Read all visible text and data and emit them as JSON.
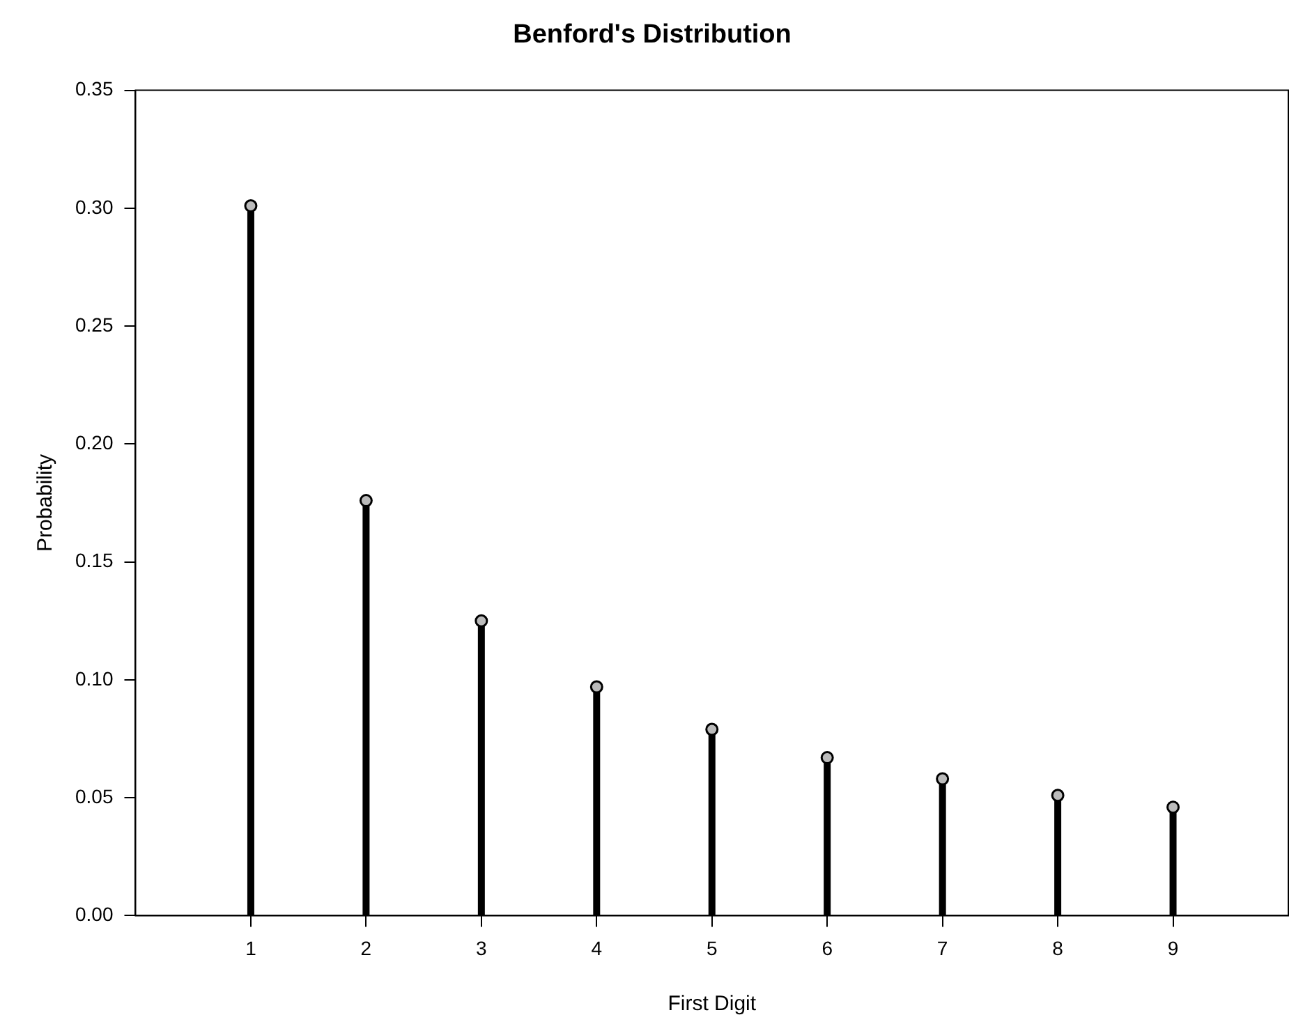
{
  "chart_data": {
    "type": "lollipop",
    "title": "Benford's Distribution",
    "xlabel": "First Digit",
    "ylabel": "Probability",
    "x": [
      1,
      2,
      3,
      4,
      5,
      6,
      7,
      8,
      9
    ],
    "values": [
      0.301,
      0.176,
      0.125,
      0.097,
      0.079,
      0.067,
      0.058,
      0.051,
      0.046
    ],
    "color": "#000000",
    "xlim": [
      0,
      10
    ],
    "xticks": [
      1,
      2,
      3,
      4,
      5,
      6,
      7,
      8,
      9
    ],
    "ylim": [
      0,
      0.35
    ],
    "yticks": [
      {
        "value": 0,
        "label": "0.00"
      },
      {
        "value": 0.05,
        "label": "0.05"
      },
      {
        "value": 0.1,
        "label": "0.10"
      },
      {
        "value": 0.15,
        "label": "0.15"
      },
      {
        "value": 0.2,
        "label": "0.20"
      },
      {
        "value": 0.25,
        "label": "0.25"
      },
      {
        "value": 0.3,
        "label": "0.30"
      },
      {
        "value": 0.35,
        "label": "0.35"
      }
    ],
    "marker": "circle",
    "legend": false
  }
}
